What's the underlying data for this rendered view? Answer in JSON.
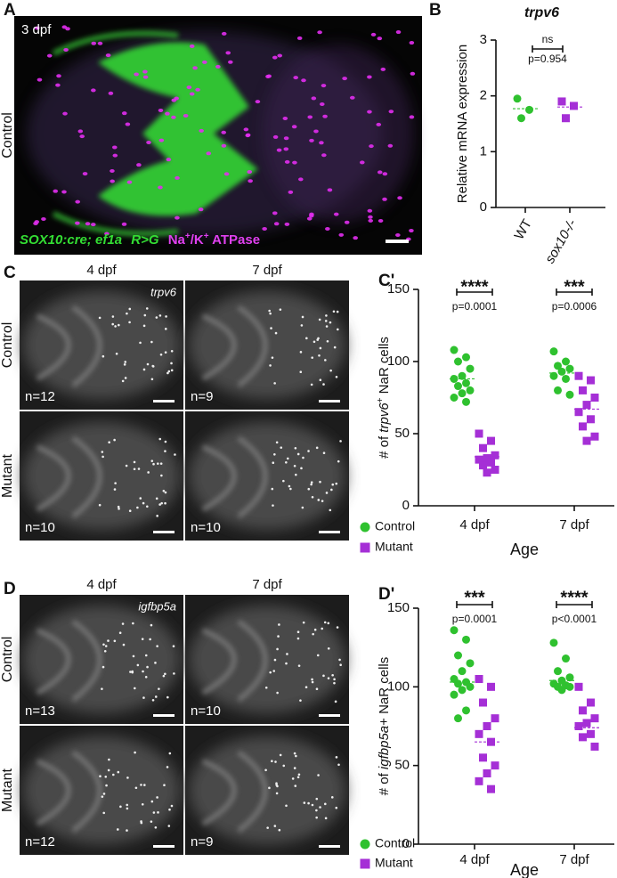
{
  "panels": {
    "A": {
      "label": "A",
      "time": "3 dpf",
      "row": "Control",
      "caption": [
        "SOX10:cre; ef1a",
        "R>G",
        "Na",
        "+",
        "/K",
        "+",
        " ATPase"
      ]
    },
    "C": {
      "label": "C",
      "columns": [
        "4 dpf",
        "7 dpf"
      ],
      "gene": "trpv6",
      "rows": [
        "Control",
        "Mutant"
      ],
      "n": [
        [
          "n=12",
          "n=9"
        ],
        [
          "n=10",
          "n=10"
        ]
      ]
    },
    "D": {
      "label": "D",
      "columns": [
        "4 dpf",
        "7 dpf"
      ],
      "gene": "igfbp5a",
      "rows": [
        "Control",
        "Mutant"
      ],
      "n": [
        [
          "n=13",
          "n=10"
        ],
        [
          "n=12",
          "n=9"
        ]
      ]
    }
  },
  "chart_data": [
    {
      "type": "scatter",
      "panel": "B",
      "title": "trpv6",
      "ylabel": [
        "Relative mRNA expression"
      ],
      "categories": [
        "WT",
        "sox10-/-"
      ],
      "ylim": [
        0,
        3
      ],
      "yticks": [
        0,
        1,
        2,
        3
      ],
      "series": [
        {
          "color": "#2fc12f",
          "marker": "circle",
          "values": [
            [
              1.95,
              1.75,
              1.6
            ],
            null
          ],
          "means": [
            1.77,
            null
          ]
        },
        {
          "color": "#a52fd6",
          "marker": "square",
          "values": [
            null,
            [
              1.9,
              1.82,
              1.6
            ]
          ],
          "means": [
            null,
            1.8
          ]
        }
      ],
      "annotations": [
        {
          "text": "ns",
          "p": "p=0.954"
        }
      ]
    },
    {
      "type": "scatter",
      "panel": "C'",
      "ylabel": [
        "# of ",
        "trpv6",
        "+",
        " NaR cells"
      ],
      "xlabel": "Age",
      "categories": [
        "4 dpf",
        "7 dpf"
      ],
      "ylim": [
        0,
        150
      ],
      "yticks": [
        0,
        50,
        100,
        150
      ],
      "series": [
        {
          "name": "Control",
          "color": "#2fc12f",
          "marker": "circle",
          "values": [
            [
              108,
              103,
              100,
              95,
              90,
              88,
              85,
              83,
              80,
              78,
              75,
              72
            ],
            [
              107,
              100,
              97,
              95,
              93,
              90,
              88,
              80,
              77
            ]
          ],
          "means": [
            88,
            92
          ]
        },
        {
          "name": "Mutant",
          "color": "#a52fd6",
          "marker": "square",
          "values": [
            [
              50,
              45,
              40,
              35,
              33,
              32,
              30,
              28,
              25,
              23
            ],
            [
              90,
              87,
              80,
              75,
              70,
              65,
              60,
              55,
              48,
              45
            ]
          ],
          "means": [
            34,
            67
          ]
        }
      ],
      "annotations": [
        {
          "text": "****",
          "p": "p=0.0001"
        },
        {
          "text": "***",
          "p": "p=0.0006"
        }
      ]
    },
    {
      "type": "scatter",
      "panel": "D'",
      "ylabel": [
        "# of ",
        "igfbp5a",
        "+ NaR cells"
      ],
      "xlabel": "Age",
      "categories": [
        "4 dpf",
        "7 dpf"
      ],
      "ylim": [
        0,
        150
      ],
      "yticks": [
        0,
        50,
        100,
        150
      ],
      "series": [
        {
          "name": "Control",
          "color": "#2fc12f",
          "marker": "circle",
          "values": [
            [
              136,
              130,
              120,
              115,
              110,
              105,
              103,
              102,
              100,
              98,
              95,
              85,
              80
            ],
            [
              128,
              118,
              110,
              106,
              104,
              102,
              101,
              100,
              100,
              98
            ]
          ],
          "means": [
            103,
            104
          ]
        },
        {
          "name": "Mutant",
          "color": "#a52fd6",
          "marker": "square",
          "values": [
            [
              105,
              100,
              90,
              80,
              75,
              70,
              65,
              55,
              50,
              45,
              40,
              35
            ],
            [
              100,
              90,
              85,
              80,
              77,
              75,
              70,
              68,
              62
            ]
          ],
          "means": [
            65,
            74
          ]
        }
      ],
      "annotations": [
        {
          "text": "***",
          "p": "p=0.0001"
        },
        {
          "text": "****",
          "p": "p<0.0001"
        }
      ]
    }
  ]
}
